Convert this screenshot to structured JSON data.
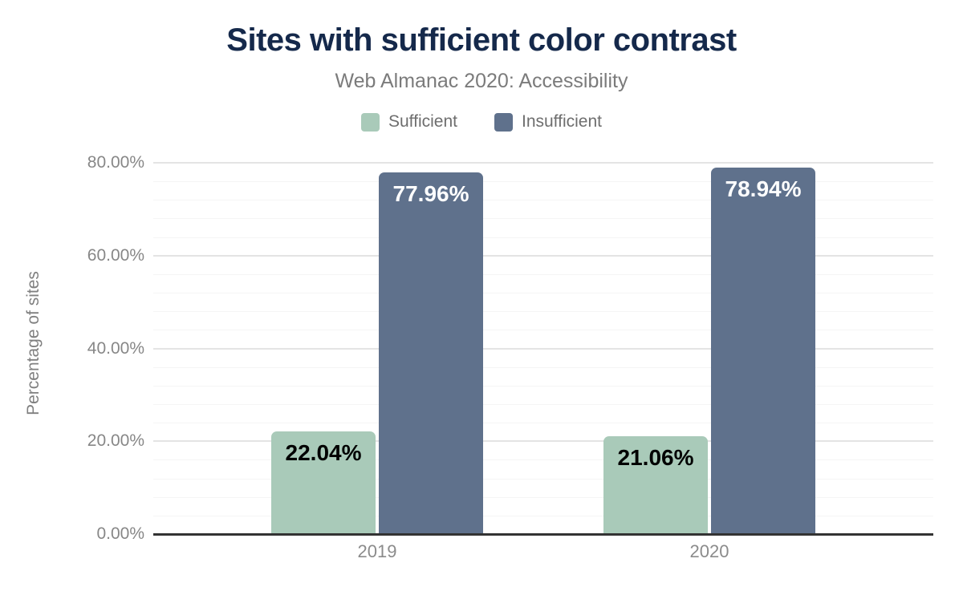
{
  "chart_data": {
    "type": "bar",
    "title": "Sites with sufficient color contrast",
    "subtitle": "Web Almanac 2020: Accessibility",
    "categories": [
      "2019",
      "2020"
    ],
    "series": [
      {
        "name": "Sufficient",
        "color": "#a9cab9",
        "label_color": "#000000",
        "values": [
          22.04,
          21.06
        ],
        "labels": [
          "22.04%",
          "21.06%"
        ]
      },
      {
        "name": "Insufficient",
        "color": "#5f718c",
        "label_color": "#ffffff",
        "values": [
          77.96,
          78.94
        ],
        "labels": [
          "77.96%",
          "78.94%"
        ]
      }
    ],
    "xlabel": "",
    "ylabel": "Percentage of sites",
    "ylim": [
      0,
      80
    ],
    "yticks": [
      "0.00%",
      "20.00%",
      "40.00%",
      "60.00%",
      "80.00%"
    ],
    "ytick_values": [
      0,
      20,
      40,
      60,
      80
    ],
    "grid": "horizontal major every 20%, minor every 4%",
    "legend_position": "top-center"
  }
}
